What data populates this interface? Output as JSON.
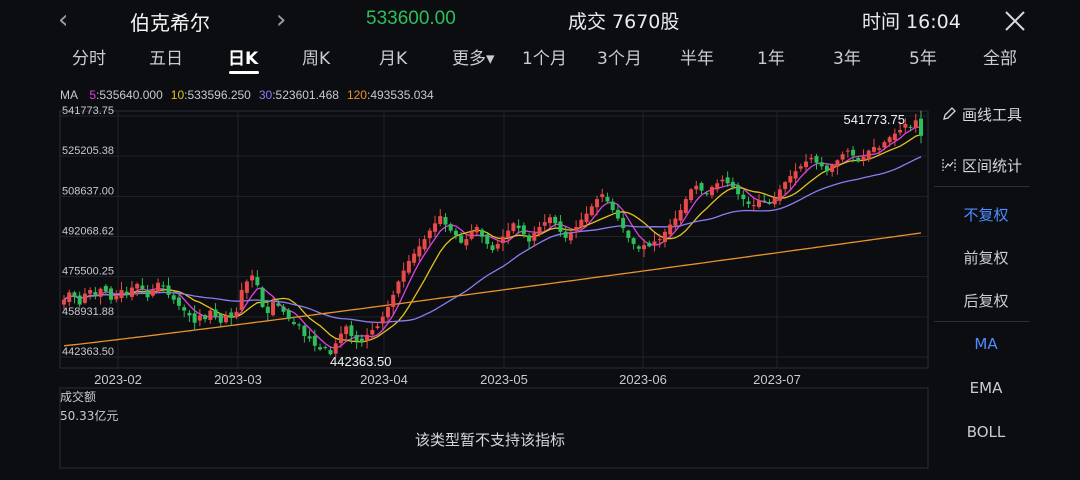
{
  "header": {
    "back_icon": "chevron-left-icon",
    "title": "伯克希尔",
    "forward_icon": "chevron-right-icon",
    "price": "533600.00",
    "volume": "成交 7670股",
    "time": "时间 16:04",
    "close_icon": "close-icon",
    "colors": {
      "price": "#2fbe5a"
    }
  },
  "tabs": [
    {
      "label": "分时"
    },
    {
      "label": "五日"
    },
    {
      "label": "日K",
      "active": true
    },
    {
      "label": "周K"
    },
    {
      "label": "月K"
    },
    {
      "label": "更多▾"
    },
    {
      "label": "1个月"
    },
    {
      "label": "3个月"
    },
    {
      "label": "半年"
    },
    {
      "label": "1年"
    },
    {
      "label": "3年"
    },
    {
      "label": "5年"
    },
    {
      "label": "全部"
    }
  ],
  "ma": {
    "label": "MA",
    "items": [
      {
        "period": "5",
        "value": "535640.000",
        "color": "#e040e6"
      },
      {
        "period": "10",
        "value": "533596.250",
        "color": "#e3c21d"
      },
      {
        "period": "30",
        "value": "523601.468",
        "color": "#8a7df2"
      },
      {
        "period": "120",
        "value": "493535.034",
        "color": "#e8922b"
      }
    ]
  },
  "chart_data": {
    "type": "candlestick",
    "y_axis_labels": [
      "541773.75",
      "525205.38",
      "508637.00",
      "492068.62",
      "475500.25",
      "458931.88",
      "442363.50"
    ],
    "ylim": [
      442363.5,
      541773.75
    ],
    "x_axis_labels": [
      "2023-02",
      "2023-03",
      "2023-04",
      "2023-05",
      "2023-06",
      "2023-07"
    ],
    "max_annotation": "541773.75",
    "min_annotation": "442363.50",
    "colors": {
      "up": "#e84a4a",
      "down": "#2fbe5a"
    },
    "series": [
      {
        "name": "K",
        "closes": [
          466000,
          469000,
          467500,
          464000,
          468500,
          470000,
          468000,
          470500,
          469500,
          466000,
          467500,
          470000,
          468000,
          471000,
          472500,
          470500,
          467000,
          470000,
          473000,
          471500,
          468000,
          466000,
          463500,
          461500,
          459500,
          456500,
          459500,
          458000,
          461500,
          459000,
          456500,
          459500,
          458500,
          461000,
          470000,
          473500,
          476000,
          472000,
          463000,
          460500,
          465000,
          463500,
          461000,
          458000,
          456000,
          455500,
          451000,
          450000,
          447000,
          445500,
          446000,
          443500,
          448000,
          452000,
          455000,
          451000,
          449000,
          448500,
          451500,
          453500,
          455000,
          459000,
          463000,
          468000,
          473500,
          478000,
          482000,
          485000,
          488000,
          491000,
          494500,
          497500,
          500500,
          497000,
          494500,
          492500,
          489500,
          491000,
          494000,
          496000,
          492000,
          489000,
          486500,
          489000,
          492000,
          494500,
          497500,
          495500,
          493000,
          490000,
          493500,
          496000,
          498000,
          500000,
          497500,
          494000,
          491500,
          493500,
          496000,
          499000,
          501500,
          504500,
          507500,
          509500,
          506500,
          503000,
          499500,
          495500,
          491500,
          489000,
          487000,
          488500,
          488000,
          490000,
          491000,
          494000,
          497000,
          499500,
          503000,
          507500,
          511500,
          513000,
          511000,
          509500,
          512500,
          514000,
          515500,
          514000,
          512500,
          509500,
          507500,
          505500,
          505000,
          507000,
          506500,
          505500,
          508000,
          511500,
          514500,
          517000,
          519000,
          521000,
          523000,
          524500,
          522500,
          521000,
          519000,
          521500,
          523500,
          526000,
          527500,
          525500,
          523000,
          525000,
          527500,
          529000,
          528500,
          531000,
          533000,
          534500,
          536000,
          538500,
          537000,
          540000,
          533600
        ],
        "ohlc_note": "closes approximate; candles rendered with estimated opens"
      }
    ]
  },
  "volume_panel": {
    "title": "成交额",
    "max_label": "50.33亿元",
    "message": "该类型暂不支持该指标"
  },
  "right_panel": {
    "draw_tool": {
      "icon": "pen-icon",
      "label": "画线工具"
    },
    "interval_stats": {
      "icon": "interval-stats-icon",
      "label": "区间统计"
    },
    "adjust_options": [
      {
        "label": "不复权",
        "active": true
      },
      {
        "label": "前复权"
      },
      {
        "label": "后复权"
      }
    ],
    "indicators": [
      {
        "label": "MA",
        "active": true
      },
      {
        "label": "EMA"
      },
      {
        "label": "BOLL"
      }
    ],
    "accent_color": "#4d8dff"
  }
}
